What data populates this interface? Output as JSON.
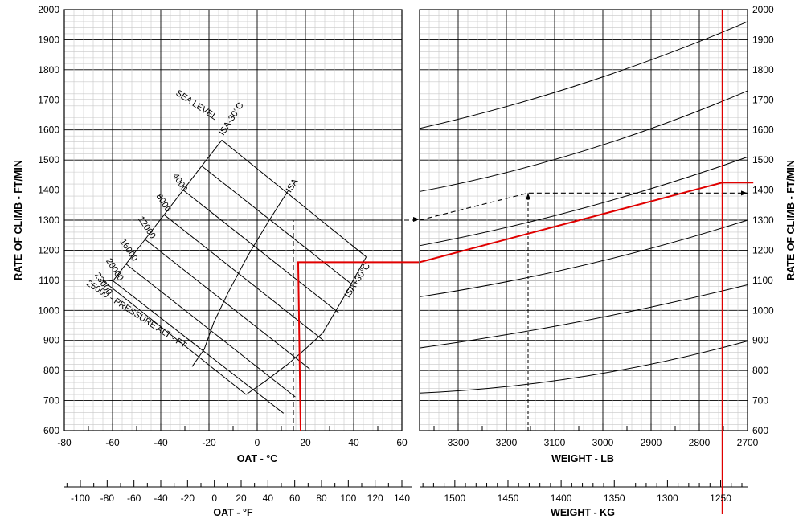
{
  "chart_data": [
    {
      "type": "line",
      "panel": "left",
      "title": "",
      "xlabel": "OAT - °C",
      "ylabel": "RATE OF CLIMB - FT/MIN",
      "xlim": [
        -80,
        60
      ],
      "ylim": [
        600,
        2000
      ],
      "x_ticks": [
        -80,
        -60,
        -40,
        -20,
        0,
        20,
        40,
        60
      ],
      "y_ticks": [
        600,
        700,
        800,
        900,
        1000,
        1100,
        1200,
        1300,
        1400,
        1500,
        1600,
        1700,
        1800,
        1900,
        2000
      ],
      "secondary_x": {
        "label": "OAT - °F",
        "ticks": [
          -100,
          -80,
          -60,
          -40,
          -20,
          0,
          20,
          40,
          60,
          80,
          100,
          120,
          140
        ],
        "tick_labels": [
          "-100",
          "-80",
          "-60",
          "-40",
          "-20",
          "0",
          "20",
          "40",
          "60",
          "80",
          "100",
          "120",
          "140"
        ]
      },
      "altitude_labels": {
        "title": "25000 - PRESSURE ALT - FT",
        "sea_level": "SEA LEVEL",
        "values": [
          "4000",
          "8000",
          "12000",
          "16000",
          "20000",
          "23000"
        ]
      },
      "temperature_labels": [
        "ISA-30°C",
        "ISA",
        "ISA+30°C"
      ],
      "altitude_lines": [
        {
          "label": "SEA LEVEL",
          "points": [
            [
              -14.7,
              1566
            ],
            [
              45.2,
              1178
            ]
          ]
        },
        {
          "label": "4000",
          "points": [
            [
              -23.0,
              1480
            ],
            [
              39.5,
              1085
            ]
          ]
        },
        {
          "label": "8000",
          "points": [
            [
              -30.7,
              1400
            ],
            [
              33.8,
              992
            ]
          ]
        },
        {
          "label": "12000",
          "points": [
            [
              -38.6,
              1318
            ],
            [
              27.8,
              898
            ]
          ]
        },
        {
          "label": "16000",
          "points": [
            [
              -46.5,
              1236
            ],
            [
              21.8,
              805
            ]
          ]
        },
        {
          "label": "20000",
          "points": [
            [
              -54.4,
              1154
            ],
            [
              15.8,
              712
            ]
          ]
        },
        {
          "label": "23000",
          "points": [
            [
              -59.8,
              1098
            ],
            [
              10.9,
              658
            ]
          ]
        }
      ],
      "temperature_lines": [
        {
          "label": "ISA-30°C",
          "points": [
            [
              -14.7,
              1566
            ],
            [
              -23.0,
              1480
            ],
            [
              -30.7,
              1400
            ],
            [
              -38.6,
              1318
            ],
            [
              -46.5,
              1236
            ],
            [
              -54.4,
              1154
            ],
            [
              -59.8,
              1098
            ],
            [
              -64.2,
              1100
            ]
          ]
        },
        {
          "label": "ISA",
          "points": [
            [
              13.0,
              1400
            ],
            [
              5.0,
              1300
            ],
            [
              -4.0,
              1180
            ],
            [
              -12.0,
              1060
            ],
            [
              -18.0,
              960
            ],
            [
              -22.0,
              870
            ],
            [
              -27.0,
              813
            ]
          ]
        },
        {
          "label": "ISA+30°C",
          "points": [
            [
              45.2,
              1178
            ],
            [
              36.0,
              1045
            ],
            [
              27.2,
              925
            ],
            [
              19.8,
              870
            ],
            [
              12.5,
              820
            ],
            [
              3.5,
              765
            ],
            [
              -4.6,
              720
            ]
          ]
        }
      ],
      "guides": {
        "dashed": [
          [
            15,
            600
          ],
          [
            15,
            1300
          ],
          [
            67,
            1300
          ]
        ],
        "red": [
          [
            18,
            600
          ],
          [
            17,
            1160
          ],
          [
            67,
            1160
          ]
        ]
      }
    },
    {
      "type": "line",
      "panel": "right",
      "title": "",
      "xlabel": "WEIGHT - LB",
      "ylabel": "RATE OF CLIMB - FT/MIN",
      "xlim": [
        3380,
        2700
      ],
      "ylim": [
        600,
        2000
      ],
      "x_ticks": [
        3300,
        3200,
        3100,
        3000,
        2900,
        2800,
        2700
      ],
      "y_ticks": [
        600,
        700,
        800,
        900,
        1000,
        1100,
        1200,
        1300,
        1400,
        1500,
        1600,
        1700,
        1800,
        1900,
        2000
      ],
      "secondary_x": {
        "label": "WEIGHT - KG",
        "ticks": [
          1500,
          1450,
          1400,
          1350,
          1300,
          1250
        ],
        "tick_labels": [
          "1500",
          "1450",
          "1400",
          "1350",
          "1300",
          "1250"
        ]
      },
      "series": [
        {
          "x": [
            3380,
            3040,
            2700
          ],
          "y": [
            1605,
            1755,
            1960
          ]
        },
        {
          "x": [
            3380,
            3040,
            2700
          ],
          "y": [
            1395,
            1530,
            1730
          ]
        },
        {
          "x": [
            3380,
            3040,
            2700
          ],
          "y": [
            1215,
            1340,
            1510
          ]
        },
        {
          "x": [
            3380,
            3040,
            2700
          ],
          "y": [
            1045,
            1150,
            1300
          ]
        },
        {
          "x": [
            3380,
            3040,
            2700
          ],
          "y": [
            875,
            965,
            1085
          ]
        },
        {
          "x": [
            3380,
            3040,
            2700
          ],
          "y": [
            725,
            780,
            898
          ]
        }
      ],
      "guides": {
        "dashed": [
          [
            3380,
            1300
          ],
          [
            3155,
            1390
          ],
          [
            2700,
            1390
          ]
        ],
        "dashed_vertical": [
          [
            3155,
            600
          ],
          [
            3155,
            1390
          ]
        ],
        "red_line": [
          [
            3380,
            1160
          ],
          [
            2752,
            1425
          ],
          [
            2688,
            1425
          ]
        ],
        "red_vertical": [
          [
            2752,
            2000
          ],
          [
            2752,
            600
          ]
        ]
      }
    }
  ]
}
